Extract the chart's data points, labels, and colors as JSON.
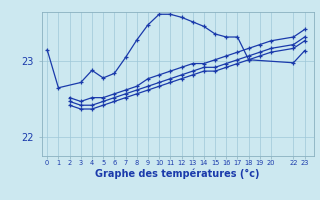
{
  "xlabel": "Graphe des températures (°c)",
  "bg_color": "#cce8f0",
  "line_color": "#1a3aab",
  "grid_color": "#9fc8d8",
  "ylim": [
    21.75,
    23.65
  ],
  "xlim": [
    -0.5,
    23.8
  ],
  "yticks": [
    22,
    23
  ],
  "xtick_positions": [
    0,
    1,
    2,
    3,
    4,
    5,
    6,
    7,
    8,
    9,
    10,
    11,
    12,
    13,
    14,
    15,
    16,
    17,
    18,
    19,
    20,
    22,
    23
  ],
  "xtick_labels": [
    "0",
    "1",
    "2",
    "3",
    "4",
    "5",
    "6",
    "7",
    "8",
    "9",
    "10",
    "11",
    "12",
    "13",
    "14",
    "15",
    "16",
    "17",
    "18",
    "19",
    "20",
    "22",
    "23"
  ],
  "series1_x": [
    0,
    1,
    3,
    4,
    5,
    6,
    7,
    8,
    9,
    10,
    11,
    12,
    13,
    14,
    15,
    16,
    17,
    18,
    22,
    23
  ],
  "series1_y": [
    23.15,
    22.65,
    22.72,
    22.88,
    22.78,
    22.84,
    23.05,
    23.28,
    23.48,
    23.62,
    23.62,
    23.58,
    23.52,
    23.46,
    23.36,
    23.32,
    23.32,
    23.02,
    22.98,
    23.14
  ],
  "series2_x": [
    2,
    3,
    4,
    5,
    6,
    7,
    8,
    9,
    10,
    11,
    12,
    13,
    14,
    15,
    16,
    17,
    18,
    19,
    20,
    22,
    23
  ],
  "series2_y": [
    22.52,
    22.47,
    22.52,
    22.52,
    22.57,
    22.62,
    22.67,
    22.77,
    22.82,
    22.87,
    22.92,
    22.97,
    22.97,
    23.02,
    23.07,
    23.12,
    23.17,
    23.22,
    23.27,
    23.32,
    23.42
  ],
  "series3_x": [
    2,
    3,
    4,
    5,
    6,
    7,
    8,
    9,
    10,
    11,
    12,
    13,
    14,
    15,
    16,
    17,
    18,
    19,
    20,
    22,
    23
  ],
  "series3_y": [
    22.47,
    22.42,
    22.42,
    22.47,
    22.52,
    22.57,
    22.62,
    22.67,
    22.72,
    22.77,
    22.82,
    22.87,
    22.92,
    22.92,
    22.97,
    23.02,
    23.07,
    23.12,
    23.17,
    23.22,
    23.32
  ],
  "series4_x": [
    2,
    3,
    4,
    5,
    6,
    7,
    8,
    9,
    10,
    11,
    12,
    13,
    14,
    15,
    16,
    17,
    18,
    19,
    20,
    22,
    23
  ],
  "series4_y": [
    22.42,
    22.37,
    22.37,
    22.42,
    22.47,
    22.52,
    22.57,
    22.62,
    22.67,
    22.72,
    22.77,
    22.82,
    22.87,
    22.87,
    22.92,
    22.97,
    23.02,
    23.07,
    23.12,
    23.17,
    23.27
  ]
}
